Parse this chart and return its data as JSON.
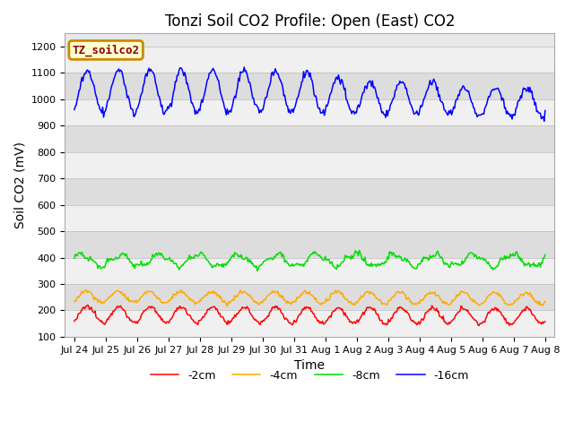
{
  "title": "Tonzi Soil CO2 Profile: Open (East) CO2",
  "xlabel": "Time",
  "ylabel": "Soil CO2 (mV)",
  "ylim": [
    100,
    1250
  ],
  "yticks": [
    100,
    200,
    300,
    400,
    500,
    600,
    700,
    800,
    900,
    1000,
    1100,
    1200
  ],
  "legend_label": "TZ_soilco2",
  "series": [
    {
      "label": "-2cm",
      "color": "#ff0000"
    },
    {
      "label": "-4cm",
      "color": "#ffaa00"
    },
    {
      "label": "-8cm",
      "color": "#00dd00"
    },
    {
      "label": "-16cm",
      "color": "#0000ff"
    }
  ],
  "background_color": "#ffffff",
  "plot_bg_color": "#e8e8e8",
  "band_light": "#f0f0f0",
  "band_dark": "#dddddd",
  "n_points": 500,
  "x_start": 0,
  "x_end": 15,
  "xtick_positions": [
    0,
    1,
    2,
    3,
    4,
    5,
    6,
    7,
    8,
    9,
    10,
    11,
    12,
    13,
    14,
    15
  ],
  "xtick_labels": [
    "Jul 24",
    "Jul 25",
    "Jul 26",
    "Jul 27",
    "Jul 28",
    "Jul 29",
    "Jul 30",
    "Jul 31",
    "Aug 1",
    "Aug 2",
    "Aug 3",
    "Aug 4",
    "Aug 5",
    "Aug 6",
    "Aug 7",
    "Aug 8"
  ],
  "title_fontsize": 12,
  "axis_fontsize": 10,
  "tick_fontsize": 8
}
